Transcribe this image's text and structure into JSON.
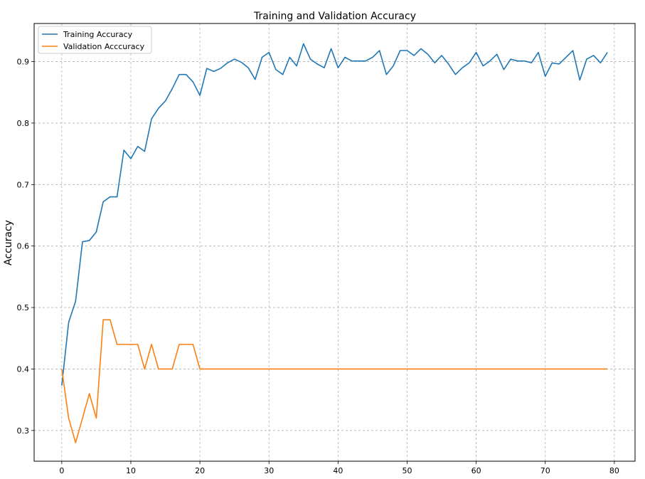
{
  "chart_data": {
    "type": "line",
    "title": "Training and Validation Accuracy",
    "xlabel": "",
    "ylabel": "Accuracy",
    "xlim": [
      -4,
      83
    ],
    "ylim": [
      0.25,
      0.962
    ],
    "xticks": [
      0,
      10,
      20,
      30,
      40,
      50,
      60,
      70,
      80
    ],
    "yticks": [
      0.3,
      0.4,
      0.5,
      0.6,
      0.7,
      0.8,
      0.9
    ],
    "grid": true,
    "legend_position": "top-left",
    "x": [
      0,
      1,
      2,
      3,
      4,
      5,
      6,
      7,
      8,
      9,
      10,
      11,
      12,
      13,
      14,
      15,
      16,
      17,
      18,
      19,
      20,
      21,
      22,
      23,
      24,
      25,
      26,
      27,
      28,
      29,
      30,
      31,
      32,
      33,
      34,
      35,
      36,
      37,
      38,
      39,
      40,
      41,
      42,
      43,
      44,
      45,
      46,
      47,
      48,
      49,
      50,
      51,
      52,
      53,
      54,
      55,
      56,
      57,
      58,
      59,
      60,
      61,
      62,
      63,
      64,
      65,
      66,
      67,
      68,
      69,
      70,
      71,
      72,
      73,
      74,
      75,
      76,
      77,
      78,
      79
    ],
    "series": [
      {
        "name": "Training Accuracy",
        "color": "#1f77b4",
        "values": [
          0.373,
          0.476,
          0.51,
          0.607,
          0.609,
          0.623,
          0.672,
          0.68,
          0.68,
          0.756,
          0.742,
          0.762,
          0.754,
          0.807,
          0.824,
          0.836,
          0.856,
          0.879,
          0.879,
          0.867,
          0.845,
          0.889,
          0.884,
          0.889,
          0.898,
          0.904,
          0.899,
          0.89,
          0.871,
          0.907,
          0.915,
          0.887,
          0.879,
          0.907,
          0.893,
          0.929,
          0.904,
          0.896,
          0.89,
          0.921,
          0.89,
          0.907,
          0.901,
          0.901,
          0.901,
          0.907,
          0.918,
          0.879,
          0.893,
          0.918,
          0.918,
          0.91,
          0.921,
          0.912,
          0.898,
          0.91,
          0.896,
          0.879,
          0.89,
          0.898,
          0.915,
          0.893,
          0.901,
          0.912,
          0.887,
          0.904,
          0.901,
          0.901,
          0.898,
          0.915,
          0.876,
          0.898,
          0.896,
          0.907,
          0.918,
          0.87,
          0.904,
          0.91,
          0.898,
          0.915
        ]
      },
      {
        "name": "Validation Acccuracy",
        "color": "#ff7f0e",
        "values": [
          0.4,
          0.32,
          0.28,
          0.32,
          0.36,
          0.32,
          0.48,
          0.48,
          0.44,
          0.44,
          0.44,
          0.44,
          0.4,
          0.44,
          0.4,
          0.4,
          0.4,
          0.44,
          0.44,
          0.44,
          0.4,
          0.4,
          0.4,
          0.4,
          0.4,
          0.4,
          0.4,
          0.4,
          0.4,
          0.4,
          0.4,
          0.4,
          0.4,
          0.4,
          0.4,
          0.4,
          0.4,
          0.4,
          0.4,
          0.4,
          0.4,
          0.4,
          0.4,
          0.4,
          0.4,
          0.4,
          0.4,
          0.4,
          0.4,
          0.4,
          0.4,
          0.4,
          0.4,
          0.4,
          0.4,
          0.4,
          0.4,
          0.4,
          0.4,
          0.4,
          0.4,
          0.4,
          0.4,
          0.4,
          0.4,
          0.4,
          0.4,
          0.4,
          0.4,
          0.4,
          0.4,
          0.4,
          0.4,
          0.4,
          0.4,
          0.4,
          0.4,
          0.4,
          0.4,
          0.4
        ]
      }
    ]
  }
}
